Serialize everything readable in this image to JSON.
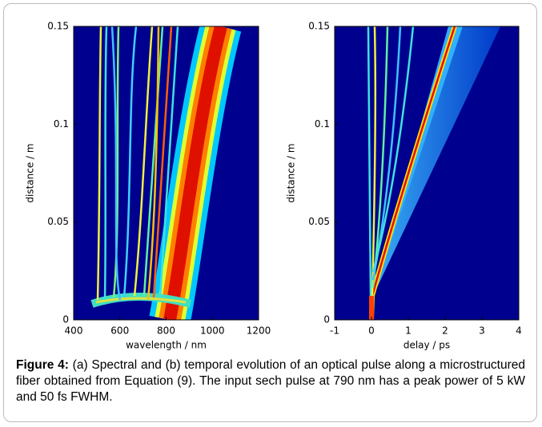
{
  "chart_data": [
    {
      "type": "heatmap",
      "xlabel": "wavelength / nm",
      "ylabel": "distance / m",
      "xlim": [
        400,
        1200
      ],
      "xticks": [
        400,
        600,
        800,
        1000,
        1200
      ],
      "ylim": [
        0,
        0.15
      ],
      "yticks": [
        0,
        0.05,
        0.1,
        0.15
      ]
    },
    {
      "type": "heatmap",
      "xlabel": "delay / ps",
      "ylabel": "distance / m",
      "xlim": [
        -1,
        4
      ],
      "xticks": [
        -1,
        0,
        1,
        2,
        3,
        4
      ],
      "ylim": [
        0,
        0.15
      ],
      "yticks": [
        0,
        0.05,
        0.1,
        0.15
      ]
    }
  ],
  "caption": {
    "label": "Figure 4:",
    "text": "(a) Spectral and (b) temporal evolution of an optical pulse along a microstructured fiber obtained from Equation (9). The input sech pulse at 790 nm has a peak power of 5 kW and 50 fs FWHM."
  }
}
